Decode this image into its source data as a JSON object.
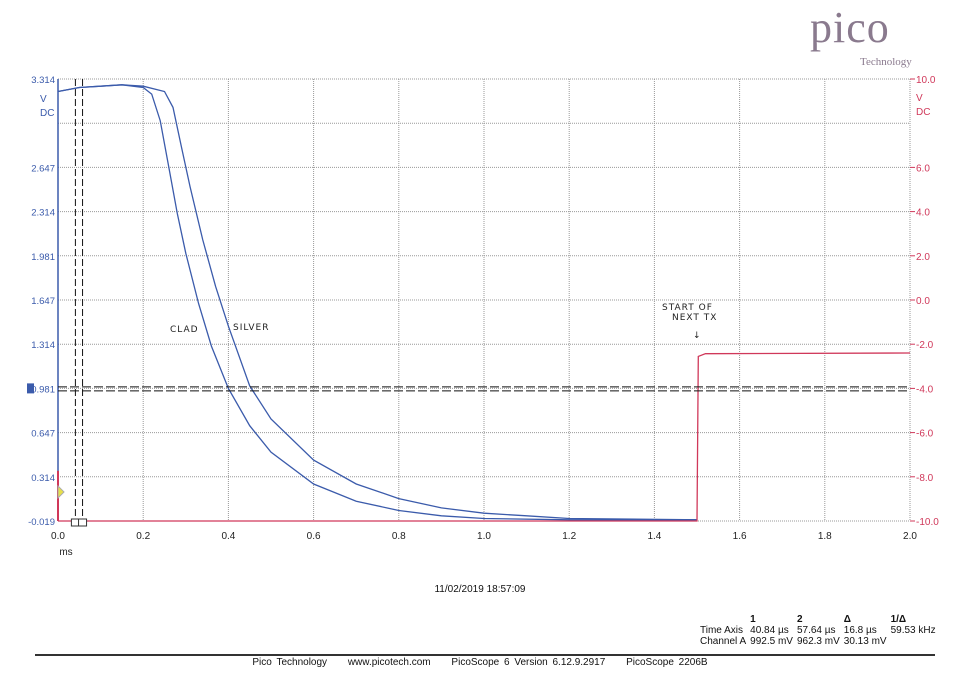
{
  "logo": {
    "word": "pico",
    "sub": "Technology",
    "mark": "®"
  },
  "timestamp": "11/02/2019 18:57:09",
  "annotations": {
    "clad": "CLAD",
    "silver": "SILVER",
    "next_tx_line1": "START OF",
    "next_tx_line2": "NEXT TX",
    "arrow": "↓"
  },
  "measurements": {
    "headers": [
      "",
      "1",
      "2",
      "Δ",
      "1/Δ"
    ],
    "rows": [
      [
        "Time Axis",
        "40.84 µs",
        "57.64 µs",
        "16.8 µs",
        "59.53 kHz"
      ],
      [
        "Channel A",
        "992.5 mV",
        "962.3 mV",
        "30.13 mV",
        ""
      ]
    ]
  },
  "footer": [
    "Pico Technology",
    "www.picotech.com",
    "PicoScope 6 Version 6.12.9.2917",
    "PicoScope 2206B"
  ],
  "chart_data": {
    "type": "line",
    "xlabel": "ms",
    "xlim": [
      0.0,
      2.0
    ],
    "xticks": [
      "0.0",
      "0.2",
      "0.4",
      "0.6",
      "0.8",
      "1.0",
      "1.2",
      "1.4",
      "1.6",
      "1.8",
      "2.0"
    ],
    "left_axis": {
      "unit": "V",
      "coupling": "DC",
      "ylim": [
        -0.019,
        3.314
      ],
      "ticks": [
        "3.314",
        "",
        "2.647",
        "2.314",
        "1.981",
        "1.647",
        "1.314",
        "0.981",
        "0.647",
        "0.314",
        "-0.019"
      ],
      "color": "#3b5bab"
    },
    "right_axis": {
      "unit": "V",
      "coupling": "DC",
      "ylim": [
        -10.0,
        10.0
      ],
      "ticks": [
        "10.0",
        "",
        "6.0",
        "4.0",
        "2.0",
        "0.0",
        "-2.0",
        "-4.0",
        "-6.0",
        "-8.0",
        "-10.0"
      ],
      "color": "#d0385a"
    },
    "grid": true,
    "series": [
      {
        "name": "Channel A (clad)",
        "axis": "left",
        "color": "#3b5bab",
        "x": [
          0,
          0.05,
          0.1,
          0.15,
          0.2,
          0.22,
          0.24,
          0.26,
          0.28,
          0.3,
          0.33,
          0.36,
          0.4,
          0.45,
          0.5,
          0.6,
          0.7,
          0.8,
          0.9,
          1.0,
          1.2,
          1.5
        ],
        "y": [
          3.22,
          3.25,
          3.26,
          3.27,
          3.25,
          3.2,
          3.0,
          2.65,
          2.3,
          2.0,
          1.62,
          1.3,
          0.98,
          0.7,
          0.5,
          0.26,
          0.13,
          0.06,
          0.02,
          0.0,
          -0.01,
          -0.01
        ]
      },
      {
        "name": "Channel A (silver)",
        "axis": "left",
        "color": "#3b5bab",
        "x": [
          0,
          0.05,
          0.1,
          0.15,
          0.2,
          0.25,
          0.27,
          0.29,
          0.31,
          0.34,
          0.37,
          0.4,
          0.45,
          0.5,
          0.6,
          0.7,
          0.8,
          0.9,
          1.0,
          1.1,
          1.2,
          1.5
        ],
        "y": [
          3.22,
          3.25,
          3.26,
          3.27,
          3.26,
          3.22,
          3.1,
          2.8,
          2.5,
          2.1,
          1.75,
          1.45,
          1.0,
          0.75,
          0.44,
          0.26,
          0.15,
          0.08,
          0.04,
          0.02,
          0.0,
          -0.01
        ]
      },
      {
        "name": "Channel B",
        "axis": "right",
        "color": "#d0385a",
        "x": [
          0,
          1.5,
          1.503,
          1.52,
          2.0
        ],
        "y": [
          -10.0,
          -10.0,
          -2.55,
          -2.43,
          -2.4
        ]
      }
    ],
    "cursors": {
      "time_ms": [
        0.04084,
        0.05764
      ],
      "channel_a_v": [
        0.9925,
        0.9623
      ]
    }
  }
}
